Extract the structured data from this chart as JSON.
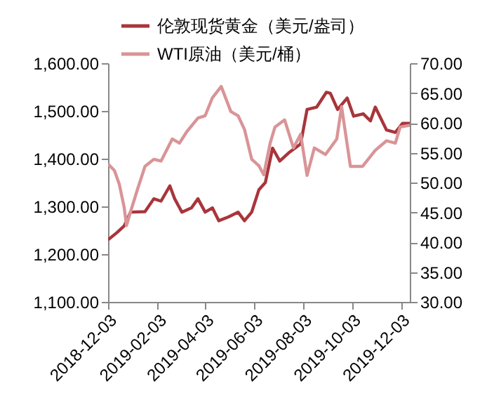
{
  "chart_data": {
    "type": "line",
    "legend": "top",
    "grid": false,
    "marker": "none",
    "line_style": "solid",
    "xlim": [
      "2018-12-03",
      "2019-12-14"
    ],
    "xticks": [
      "2018-12-03",
      "2019-02-03",
      "2019-04-03",
      "2019-06-03",
      "2019-08-03",
      "2019-10-03",
      "2019-12-03"
    ],
    "ylim": [
      1100,
      1600
    ],
    "yticks": [
      {
        "value": 1100,
        "label": "1,100.00"
      },
      {
        "value": 1200,
        "label": "1,200.00"
      },
      {
        "value": 1300,
        "label": "1,300.00"
      },
      {
        "value": 1400,
        "label": "1,400.00"
      },
      {
        "value": 1500,
        "label": "1,500.00"
      },
      {
        "value": 1600,
        "label": "1,600.00"
      }
    ],
    "y2lim": [
      30,
      70
    ],
    "y2ticks": [
      {
        "value": 30,
        "label": "30.00"
      },
      {
        "value": 35,
        "label": "35.00"
      },
      {
        "value": 40,
        "label": "40.00"
      },
      {
        "value": 45,
        "label": "45.00"
      },
      {
        "value": 50,
        "label": "50.00"
      },
      {
        "value": 55,
        "label": "55.00"
      },
      {
        "value": 60,
        "label": "60.00"
      },
      {
        "value": 65,
        "label": "65.00"
      },
      {
        "value": 70,
        "label": "70.00"
      }
    ],
    "series": [
      {
        "name": "伦敦现货黄金（美元/盎司）",
        "color": "#a8353a",
        "x": [
          "2018-12-03",
          "2018-12-14",
          "2018-12-23",
          "2018-12-31",
          "2019-01-18",
          "2019-01-29",
          "2019-02-07",
          "2019-02-18",
          "2019-02-24",
          "2019-03-05",
          "2019-03-17",
          "2019-03-25",
          "2019-04-03",
          "2019-04-12",
          "2019-04-20",
          "2019-05-02",
          "2019-05-14",
          "2019-05-22",
          "2019-05-31",
          "2019-06-09",
          "2019-06-17",
          "2019-06-26",
          "2019-07-05",
          "2019-07-16",
          "2019-07-31",
          "2019-08-08",
          "2019-08-20",
          "2019-09-01",
          "2019-09-06",
          "2019-09-15",
          "2019-09-27",
          "2019-10-05",
          "2019-10-17",
          "2019-10-26",
          "2019-11-01",
          "2019-11-15",
          "2019-11-26",
          "2019-12-05",
          "2019-12-14"
        ],
        "values": [
          1230,
          1245,
          1259,
          1288,
          1289,
          1316,
          1311,
          1343,
          1316,
          1288,
          1297,
          1316,
          1288,
          1297,
          1270,
          1278,
          1288,
          1270,
          1288,
          1335,
          1350,
          1422,
          1395,
          1412,
          1431,
          1503,
          1508,
          1539,
          1537,
          1503,
          1527,
          1489,
          1494,
          1479,
          1508,
          1460,
          1455,
          1474,
          1474
        ]
      },
      {
        "name": "WTI原油（美元/桶）",
        "color": "#d99497",
        "axis": "y2",
        "x": [
          "2018-12-03",
          "2018-12-11",
          "2018-12-17",
          "2018-12-23",
          "2018-12-26",
          "2018-12-31",
          "2019-01-09",
          "2019-01-18",
          "2019-01-29",
          "2019-02-07",
          "2019-02-21",
          "2019-03-02",
          "2019-03-11",
          "2019-03-25",
          "2019-04-03",
          "2019-04-12",
          "2019-04-23",
          "2019-05-05",
          "2019-05-14",
          "2019-05-22",
          "2019-05-31",
          "2019-06-09",
          "2019-06-15",
          "2019-06-23",
          "2019-06-29",
          "2019-07-11",
          "2019-07-22",
          "2019-07-31",
          "2019-08-08",
          "2019-08-17",
          "2019-08-31",
          "2019-09-14",
          "2019-09-20",
          "2019-10-01",
          "2019-10-16",
          "2019-11-01",
          "2019-11-15",
          "2019-11-26",
          "2019-12-02",
          "2019-12-14"
        ],
        "values": [
          53.1,
          52.0,
          49.7,
          45.9,
          42.8,
          45.1,
          49.0,
          52.7,
          53.9,
          53.6,
          57.3,
          56.6,
          58.5,
          60.8,
          61.2,
          64.2,
          66.1,
          61.9,
          61.2,
          58.9,
          53.9,
          52.8,
          51.3,
          56.6,
          59.3,
          60.5,
          55.8,
          58.1,
          51.2,
          55.8,
          54.7,
          57.3,
          62.7,
          52.7,
          52.7,
          55.4,
          57.0,
          56.6,
          59.3,
          59.6
        ]
      }
    ]
  }
}
